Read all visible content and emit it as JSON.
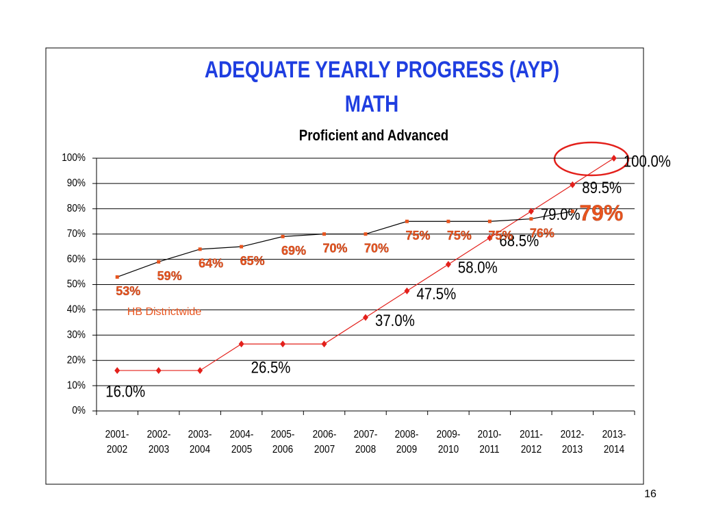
{
  "chart_data": {
    "type": "line",
    "title": "ADEQUATE YEARLY PROGRESS (AYP)",
    "title_line2": "MATH",
    "subtitle": "Proficient and Advanced",
    "page_number": "16",
    "categories": [
      "2001-2002",
      "2002-2003",
      "2003-2004",
      "2004-2005",
      "2005-2006",
      "2006-2007",
      "2007-2008",
      "2008-2009",
      "2009-2010",
      "2010-2011",
      "2011-2012",
      "2012-2013",
      "2013-2014"
    ],
    "series": [
      {
        "color": "#e3201b",
        "line_color": "#e3201b",
        "values": [
          16.0,
          16.0,
          16.0,
          26.5,
          26.5,
          26.5,
          37.0,
          47.5,
          58.0,
          68.5,
          79.0,
          89.5,
          100.0
        ],
        "value_labels": [
          "16.0%",
          null,
          null,
          "26.5%",
          null,
          null,
          "37.0%",
          "47.5%",
          "58.0%",
          "68.5%",
          "79.0%",
          "89.5%",
          "100.0%"
        ]
      },
      {
        "name": "HB Districtwide",
        "color": "#e8541e",
        "line_color": "#000000",
        "values": [
          53,
          59,
          64,
          65,
          69,
          70,
          70,
          75,
          75,
          75,
          76,
          79,
          null
        ],
        "value_labels": [
          "53%",
          "59%",
          "64%",
          "65%",
          "69%",
          "70%",
          "70%",
          "75%",
          "75%",
          "75%",
          "76%",
          "79%",
          null
        ]
      }
    ],
    "ylim": [
      0,
      100
    ],
    "yticks": [
      {
        "value": 0,
        "label": "0%"
      },
      {
        "value": 10,
        "label": "10%"
      },
      {
        "value": 20,
        "label": "20%"
      },
      {
        "value": 30,
        "label": "30%"
      },
      {
        "value": 40,
        "label": "40%"
      },
      {
        "value": 50,
        "label": "50%"
      },
      {
        "value": 60,
        "label": "60%"
      },
      {
        "value": 70,
        "label": "70%"
      },
      {
        "value": 80,
        "label": "80%"
      },
      {
        "value": 90,
        "label": "90%"
      },
      {
        "value": 100,
        "label": "100%"
      }
    ],
    "grid": true
  }
}
